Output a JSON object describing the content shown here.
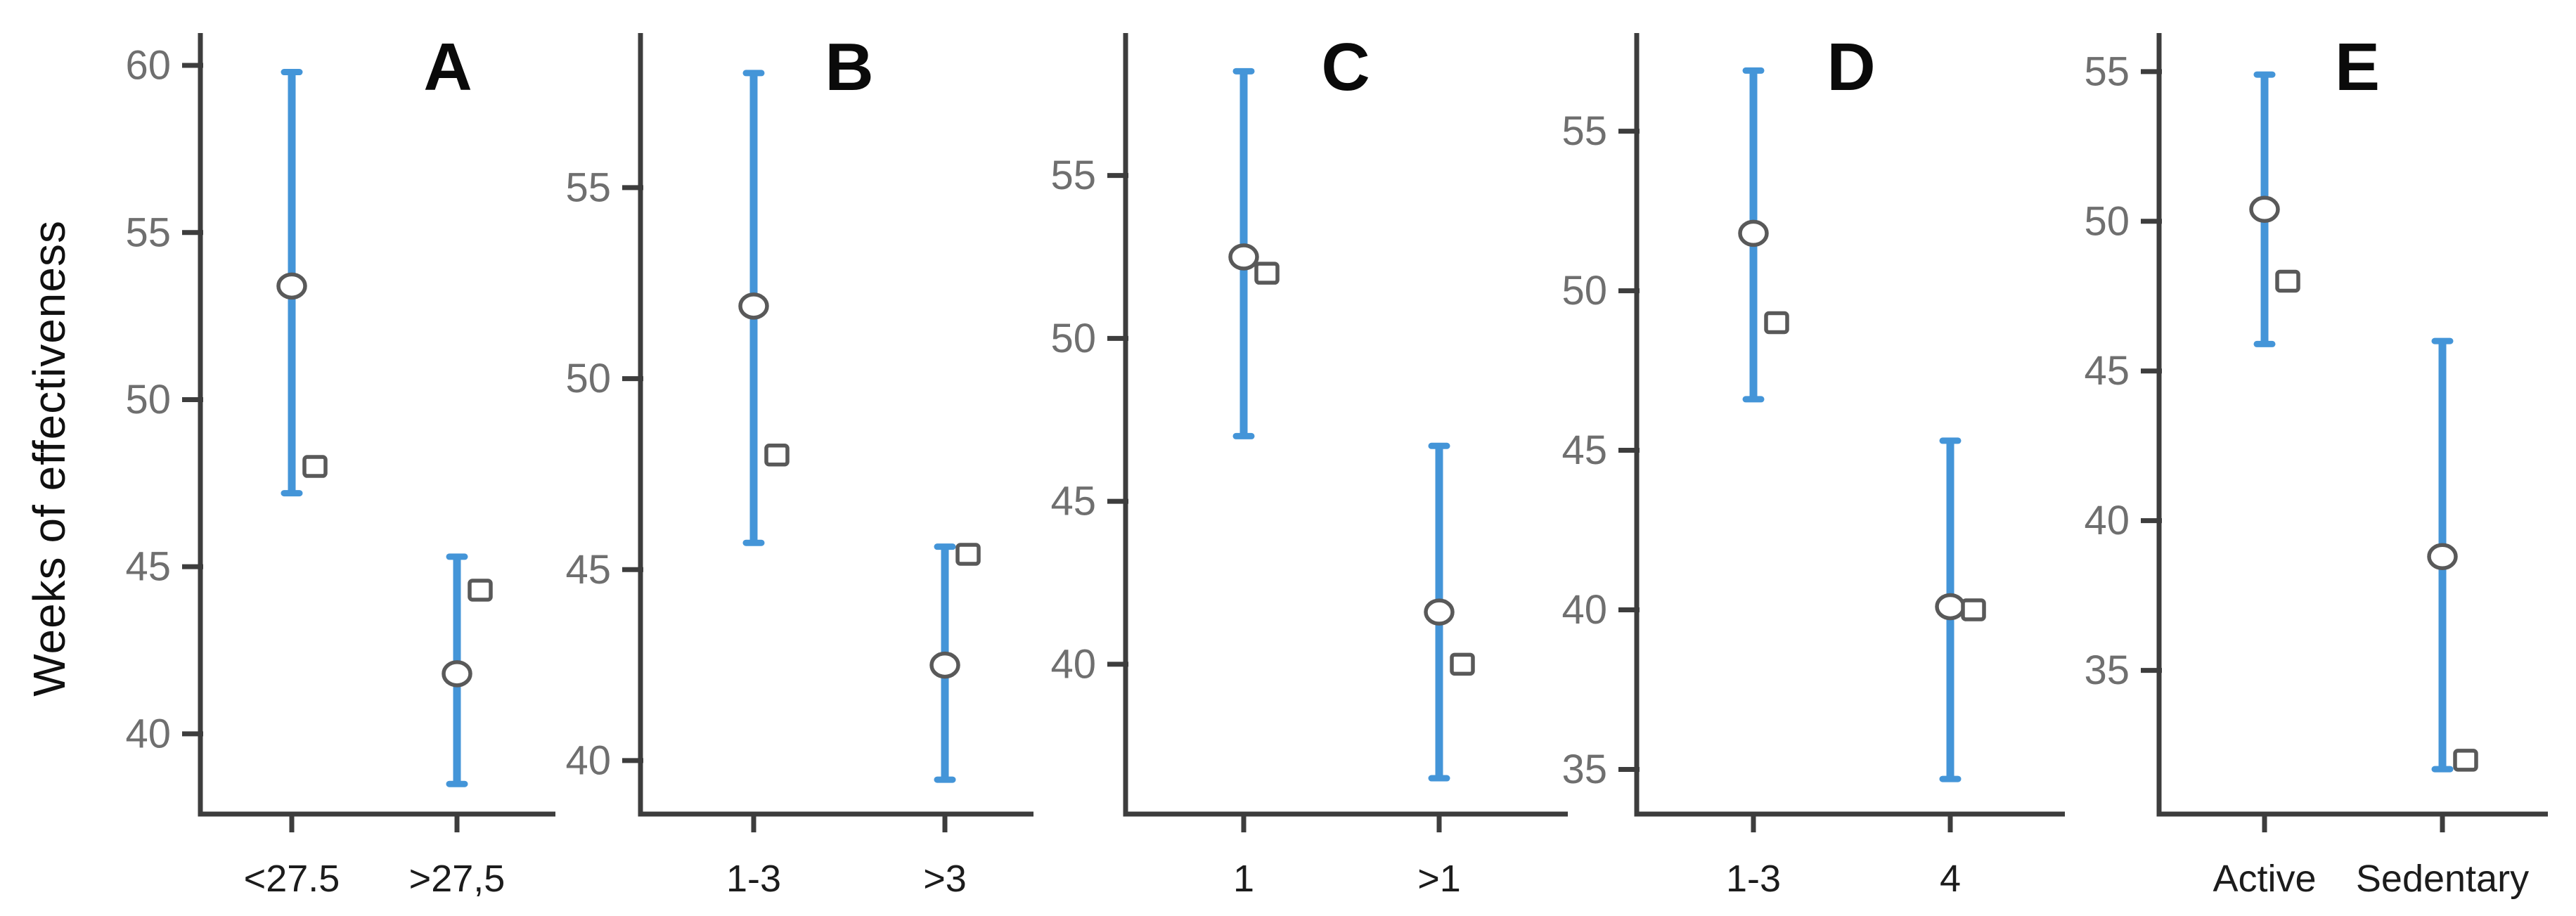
{
  "chart_data": {
    "type": "scatter",
    "subtype": "errorbar-panels",
    "title": "",
    "ylabel": "Weeks of effectiveness",
    "xlabel": "",
    "grid": false,
    "legend": "none",
    "marker_semantics": {
      "circle": "estimate with 95% CI (blue bar)",
      "square": "second estimate (offset right of CI bar)"
    },
    "style": {
      "ci_bar_color": "#4495d8",
      "axis_color": "#3d3d3d",
      "tick_label_color": "#6f6f6f",
      "category_label_color": "#1c1c1c",
      "panel_letter_color": "#0a0a0a",
      "marker_stroke_color": "#595959",
      "marker_fill_color": "#ffffff",
      "background_color": "#ffffff"
    },
    "panels": [
      {
        "label": "A",
        "x_categories": [
          "<27.5",
          ">27,5"
        ],
        "y_ticks": [
          40,
          45,
          50,
          55,
          60
        ],
        "ylim": [
          37.6,
          60.8
        ],
        "series": [
          {
            "category": "<27.5",
            "mean_circle": 53.4,
            "ci": [
              47.2,
              59.8
            ],
            "mean_square": 48.0
          },
          {
            "category": ">27,5",
            "mean_circle": 41.8,
            "ci": [
              38.5,
              45.3
            ],
            "mean_square": 44.3
          }
        ]
      },
      {
        "label": "B",
        "x_categories": [
          "1-3",
          ">3"
        ],
        "y_ticks": [
          40,
          45,
          50,
          55
        ],
        "ylim": [
          38.6,
          58.9
        ],
        "series": [
          {
            "category": "1-3",
            "mean_circle": 51.9,
            "ci": [
              45.7,
              58.0
            ],
            "mean_square": 48.0
          },
          {
            "category": ">3",
            "mean_circle": 42.5,
            "ci": [
              39.5,
              45.6
            ],
            "mean_square": 45.4
          }
        ]
      },
      {
        "label": "C",
        "x_categories": [
          "1",
          ">1"
        ],
        "y_ticks": [
          40,
          45,
          50,
          55
        ],
        "ylim": [
          35.4,
          59.2
        ],
        "series": [
          {
            "category": "1",
            "mean_circle": 52.5,
            "ci": [
              47.0,
              58.2
            ],
            "mean_square": 52.0
          },
          {
            "category": ">1",
            "mean_circle": 41.6,
            "ci": [
              36.5,
              46.7
            ],
            "mean_square": 40.0
          }
        ]
      },
      {
        "label": "D",
        "x_categories": [
          "1-3",
          "4"
        ],
        "y_ticks": [
          35,
          40,
          45,
          50,
          55
        ],
        "ylim": [
          33.6,
          57.9
        ],
        "series": [
          {
            "category": "1-3",
            "mean_circle": 51.8,
            "ci": [
              46.6,
              56.9
            ],
            "mean_square": 49.0
          },
          {
            "category": "4",
            "mean_circle": 40.1,
            "ci": [
              34.7,
              45.3
            ],
            "mean_square": 40.0
          }
        ]
      },
      {
        "label": "E",
        "x_categories": [
          "Active",
          "Sedentary"
        ],
        "y_ticks": [
          35,
          40,
          45,
          50,
          55
        ],
        "ylim": [
          30.2,
          56.1
        ],
        "series": [
          {
            "category": "Active",
            "mean_circle": 50.4,
            "ci": [
              45.9,
              54.9
            ],
            "mean_square": 48.0
          },
          {
            "category": "Sedentary",
            "mean_circle": 38.8,
            "ci": [
              31.7,
              46.0
            ],
            "mean_square": 32.0
          }
        ]
      }
    ]
  }
}
